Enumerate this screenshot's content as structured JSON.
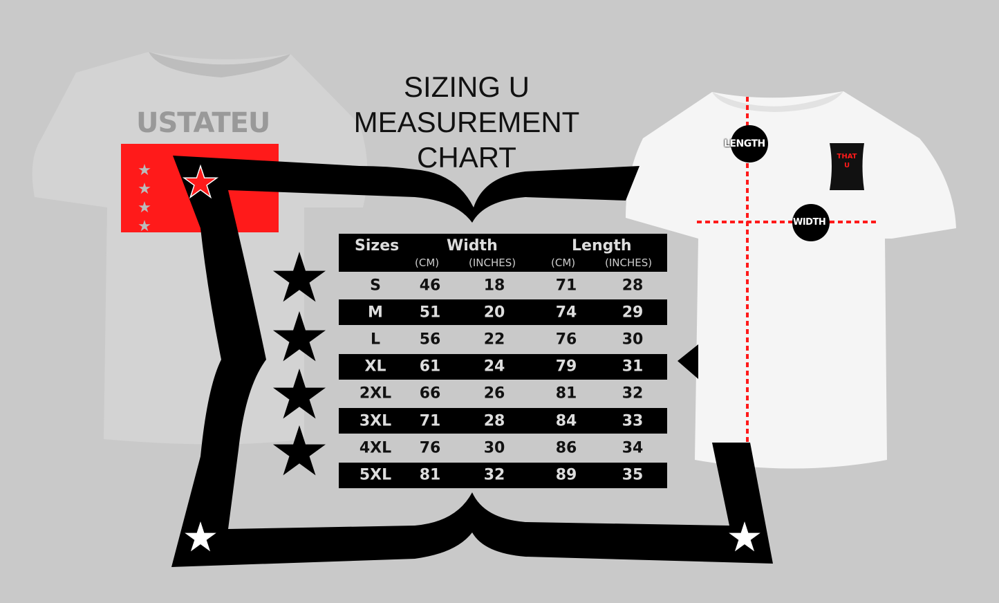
{
  "title": [
    "SIZING U",
    "MEASUREMENT",
    "CHART"
  ],
  "colors": {
    "background": "#c9c9c9",
    "frame": "#000000",
    "accent_red": "#ff2020",
    "grey_shirt": "#d2d2d2",
    "white_shirt": "#f4f4f4"
  },
  "left_shirt": {
    "logo": "USTATEU"
  },
  "right_shirt": {
    "patch": "THAT U",
    "length_label": "LENGTH",
    "width_label": "WIDTH"
  },
  "table": {
    "headers": {
      "sizes": "Sizes",
      "width": "Width",
      "length": "Length",
      "cm": "(CM)",
      "inches": "(INCHES)"
    },
    "rows": [
      {
        "size": "S",
        "width_cm": "46",
        "width_in": "18",
        "length_cm": "71",
        "length_in": "28"
      },
      {
        "size": "M",
        "width_cm": "51",
        "width_in": "20",
        "length_cm": "74",
        "length_in": "29"
      },
      {
        "size": "L",
        "width_cm": "56",
        "width_in": "22",
        "length_cm": "76",
        "length_in": "30"
      },
      {
        "size": "XL",
        "width_cm": "61",
        "width_in": "24",
        "length_cm": "79",
        "length_in": "31"
      },
      {
        "size": "2XL",
        "width_cm": "66",
        "width_in": "26",
        "length_cm": "81",
        "length_in": "32"
      },
      {
        "size": "3XL",
        "width_cm": "71",
        "width_in": "28",
        "length_cm": "84",
        "length_in": "33"
      },
      {
        "size": "4XL",
        "width_cm": "76",
        "width_in": "30",
        "length_cm": "86",
        "length_in": "34"
      },
      {
        "size": "5XL",
        "width_cm": "81",
        "width_in": "32",
        "length_cm": "89",
        "length_in": "35"
      }
    ]
  }
}
